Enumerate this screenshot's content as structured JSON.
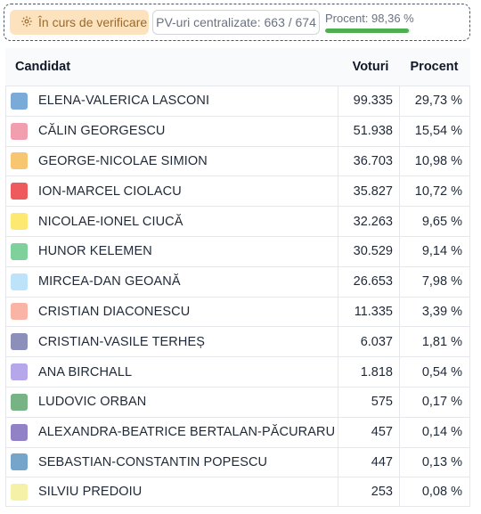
{
  "status": {
    "verification_label": "În curs de verificare",
    "pv_label": "PV-uri centralizate: 663 / 674",
    "percent_label": "Procent: 98,36 %",
    "percent_value": 98.36,
    "progress_color": "#4caf50"
  },
  "table": {
    "headers": {
      "candidate": "Candidat",
      "votes": "Voturi",
      "percent": "Procent"
    },
    "rows": [
      {
        "name": "ELENA-VALERICA LASCONI",
        "votes": "99.335",
        "percent": "29,73 %",
        "color": "#7aaad8"
      },
      {
        "name": "CĂLIN GEORGESCU",
        "votes": "51.938",
        "percent": "15,54 %",
        "color": "#f19fae"
      },
      {
        "name": "GEORGE-NICOLAE SIMION",
        "votes": "36.703",
        "percent": "10,98 %",
        "color": "#f8c671"
      },
      {
        "name": "ION-MARCEL CIOLACU",
        "votes": "35.827",
        "percent": "10,72 %",
        "color": "#ef5a5e"
      },
      {
        "name": "NICOLAE-IONEL CIUCĂ",
        "votes": "32.263",
        "percent": "9,65 %",
        "color": "#fde872"
      },
      {
        "name": "HUNOR KELEMEN",
        "votes": "30.529",
        "percent": "9,14 %",
        "color": "#7fd19c"
      },
      {
        "name": "MIRCEA-DAN GEOANĂ",
        "votes": "26.653",
        "percent": "7,98 %",
        "color": "#bde3fb"
      },
      {
        "name": "CRISTIAN DIACONESCU",
        "votes": "11.335",
        "percent": "3,39 %",
        "color": "#fab4a5"
      },
      {
        "name": "CRISTIAN-VASILE TERHEȘ",
        "votes": "6.037",
        "percent": "1,81 %",
        "color": "#8c8fba"
      },
      {
        "name": "ANA BIRCHALL",
        "votes": "1.818",
        "percent": "0,54 %",
        "color": "#b6a6ea"
      },
      {
        "name": "LUDOVIC ORBAN",
        "votes": "575",
        "percent": "0,17 %",
        "color": "#78b385"
      },
      {
        "name": "ALEXANDRA-BEATRICE BERTALAN-PĂCURARU",
        "votes": "457",
        "percent": "0,14 %",
        "color": "#9181c6"
      },
      {
        "name": "SEBASTIAN-CONSTANTIN POPESCU",
        "votes": "447",
        "percent": "0,13 %",
        "color": "#76a5cc"
      },
      {
        "name": "SILVIU PREDOIU",
        "votes": "253",
        "percent": "0,08 %",
        "color": "#f5f1a6"
      }
    ]
  }
}
